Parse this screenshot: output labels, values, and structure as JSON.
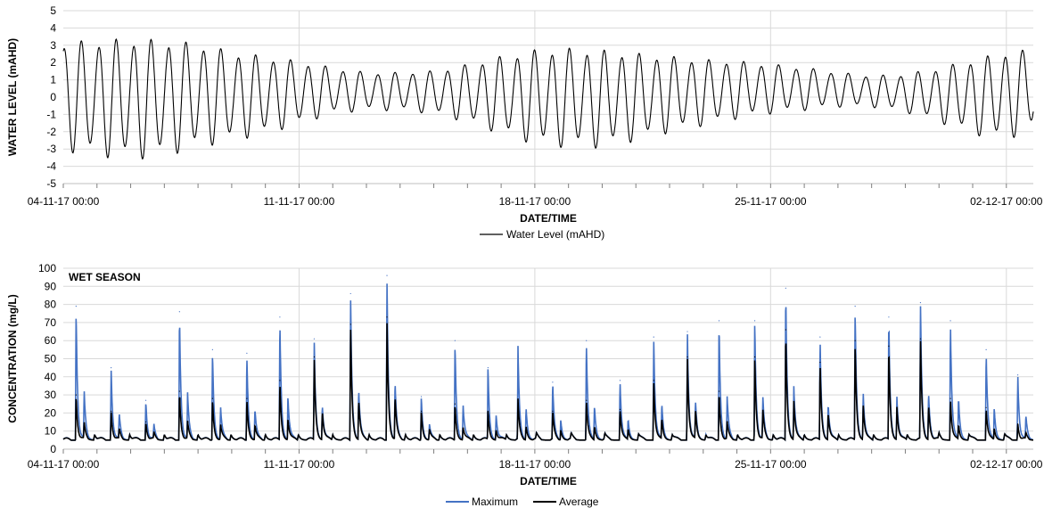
{
  "chart_data": [
    {
      "type": "line",
      "title": "",
      "xlabel": "DATE/TIME",
      "ylabel": "WATER LEVEL (mAHD)",
      "ylim": [
        -5,
        5
      ],
      "yticks": [
        5,
        4,
        3,
        2,
        1,
        0,
        -1,
        -2,
        -3,
        -4,
        -5
      ],
      "xlim_days": [
        0,
        28.8
      ],
      "x_tick_labels": [
        "04-11-17 00:00",
        "11-11-17 00:00",
        "18-11-17 00:00",
        "25-11-17 00:00",
        "02-12-17 00:00"
      ],
      "x_tick_days": [
        0,
        7,
        14,
        21,
        28
      ],
      "grid": true,
      "legend_position": "bottom-center",
      "series": [
        {
          "name": "Water Level (mAHD)",
          "color": "#000000",
          "semidiurnal_envelope": {
            "x": [
              "04-11-17 00:00",
              "05-11-17 00:00",
              "06-11-17 00:00",
              "07-11-17 00:00",
              "08-11-17 00:00",
              "09-11-17 00:00",
              "10-11-17 00:00",
              "11-11-17 00:00",
              "12-11-17 00:00",
              "13-11-17 00:00",
              "14-11-17 00:00",
              "15-11-17 00:00",
              "16-11-17 00:00",
              "17-11-17 00:00",
              "18-11-17 00:00",
              "19-11-17 00:00",
              "20-11-17 00:00",
              "21-11-17 00:00",
              "22-11-17 00:00",
              "23-11-17 00:00",
              "24-11-17 00:00",
              "25-11-17 00:00",
              "26-11-17 00:00",
              "27-11-17 00:00",
              "28-11-17 00:00",
              "29-11-17 00:00",
              "30-11-17 00:00",
              "01-12-17 00:00",
              "02-12-17 00:00",
              "02-12-17 19:12"
            ],
            "high": [
              3.4,
              3.5,
              3.6,
              3.5,
              3.3,
              2.8,
              2.5,
              2.2,
              1.8,
              1.5,
              1.5,
              1.6,
              2.0,
              2.5,
              2.9,
              3.0,
              2.9,
              2.7,
              2.5,
              2.3,
              2.2,
              2.0,
              1.8,
              1.5,
              1.3,
              1.4,
              1.8,
              2.3,
              2.8,
              2.9
            ],
            "low": [
              -3.2,
              -3.5,
              -3.7,
              -3.5,
              -3.0,
              -2.6,
              -2.2,
              -1.6,
              -1.0,
              -0.8,
              -0.8,
              -1.0,
              -1.5,
              -2.2,
              -2.8,
              -3.0,
              -3.0,
              -2.6,
              -2.1,
              -1.7,
              -1.3,
              -1.0,
              -0.8,
              -0.6,
              -0.6,
              -0.9,
              -1.5,
              -2.2,
              -2.6,
              -1.8
            ]
          }
        }
      ]
    },
    {
      "type": "line",
      "title": "",
      "annotation": "WET SEASON",
      "xlabel": "DATE/TIME",
      "ylabel": "CONCENTRATION (mg/L)",
      "ylim": [
        0,
        100
      ],
      "yticks": [
        100,
        90,
        80,
        70,
        60,
        50,
        40,
        30,
        20,
        10,
        0
      ],
      "xlim_days": [
        0,
        28.8
      ],
      "x_tick_labels": [
        "04-11-17 00:00",
        "11-11-17 00:00",
        "18-11-17 00:00",
        "25-11-17 00:00",
        "02-12-17 00:00"
      ],
      "x_tick_days": [
        0,
        7,
        14,
        21,
        28
      ],
      "grid": true,
      "legend_position": "bottom-center",
      "baseline": 5,
      "series": [
        {
          "name": "Maximum",
          "color": "#4472C4",
          "spikes": [
            {
              "x": "04-11-17 09:07",
              "y": 79
            },
            {
              "x": "05-11-17 10:05",
              "y": 45
            },
            {
              "x": "06-11-17 10:48",
              "y": 27
            },
            {
              "x": "07-11-17 10:48",
              "y": 76
            },
            {
              "x": "08-11-17 10:19",
              "y": 55
            },
            {
              "x": "09-11-17 10:48",
              "y": 53
            },
            {
              "x": "10-11-17 10:19",
              "y": 73
            },
            {
              "x": "11-11-17 10:48",
              "y": 61
            },
            {
              "x": "12-11-17 12:43",
              "y": 86
            },
            {
              "x": "13-11-17 14:38",
              "y": 96
            },
            {
              "x": "14-11-17 15:07",
              "y": 29
            },
            {
              "x": "15-11-17 15:07",
              "y": 60
            },
            {
              "x": "16-11-17 14:38",
              "y": 45
            },
            {
              "x": "17-11-17 12:00",
              "y": 56
            },
            {
              "x": "18-11-17 12:43",
              "y": 37
            },
            {
              "x": "19-11-17 12:43",
              "y": 60
            },
            {
              "x": "20-11-17 12:43",
              "y": 38
            },
            {
              "x": "21-11-17 12:43",
              "y": 62
            },
            {
              "x": "22-11-17 12:43",
              "y": 65
            },
            {
              "x": "23-11-17 11:16",
              "y": 71
            },
            {
              "x": "24-11-17 12:43",
              "y": 71
            },
            {
              "x": "25-11-17 10:48",
              "y": 89
            },
            {
              "x": "26-11-17 11:16",
              "y": 62
            },
            {
              "x": "27-11-17 12:14",
              "y": 79
            },
            {
              "x": "28-11-17 12:14",
              "y": 73
            },
            {
              "x": "29-11-17 10:48",
              "y": 81
            },
            {
              "x": "30-11-17 08:09",
              "y": 71
            },
            {
              "x": "01-12-17 09:36",
              "y": 55
            },
            {
              "x": "02-12-17 08:09",
              "y": 41
            }
          ]
        },
        {
          "name": "Average",
          "color": "#000000",
          "spikes": [
            {
              "x": "04-11-17 09:07",
              "y": 30
            },
            {
              "x": "05-11-17 10:05",
              "y": 21
            },
            {
              "x": "06-11-17 10:48",
              "y": 15
            },
            {
              "x": "07-11-17 10:48",
              "y": 32
            },
            {
              "x": "08-11-17 10:19",
              "y": 28
            },
            {
              "x": "09-11-17 10:48",
              "y": 28
            },
            {
              "x": "10-11-17 10:19",
              "y": 38
            },
            {
              "x": "11-11-17 10:48",
              "y": 51
            },
            {
              "x": "12-11-17 12:43",
              "y": 69
            },
            {
              "x": "13-11-17 14:38",
              "y": 73
            },
            {
              "x": "14-11-17 15:07",
              "y": 21
            },
            {
              "x": "15-11-17 15:07",
              "y": 25
            },
            {
              "x": "16-11-17 14:38",
              "y": 21
            },
            {
              "x": "17-11-17 12:00",
              "y": 27
            },
            {
              "x": "18-11-17 12:43",
              "y": 21
            },
            {
              "x": "19-11-17 12:43",
              "y": 27
            },
            {
              "x": "20-11-17 12:43",
              "y": 22
            },
            {
              "x": "21-11-17 12:43",
              "y": 38
            },
            {
              "x": "22-11-17 12:43",
              "y": 51
            },
            {
              "x": "23-11-17 11:16",
              "y": 32
            },
            {
              "x": "24-11-17 12:43",
              "y": 51
            },
            {
              "x": "25-11-17 10:48",
              "y": 66
            },
            {
              "x": "26-11-17 11:16",
              "y": 48
            },
            {
              "x": "27-11-17 12:14",
              "y": 60
            },
            {
              "x": "28-11-17 12:14",
              "y": 57
            },
            {
              "x": "29-11-17 10:48",
              "y": 61
            },
            {
              "x": "30-11-17 08:09",
              "y": 28
            },
            {
              "x": "01-12-17 09:36",
              "y": 23
            },
            {
              "x": "02-12-17 08:09",
              "y": 14
            }
          ]
        }
      ]
    }
  ]
}
